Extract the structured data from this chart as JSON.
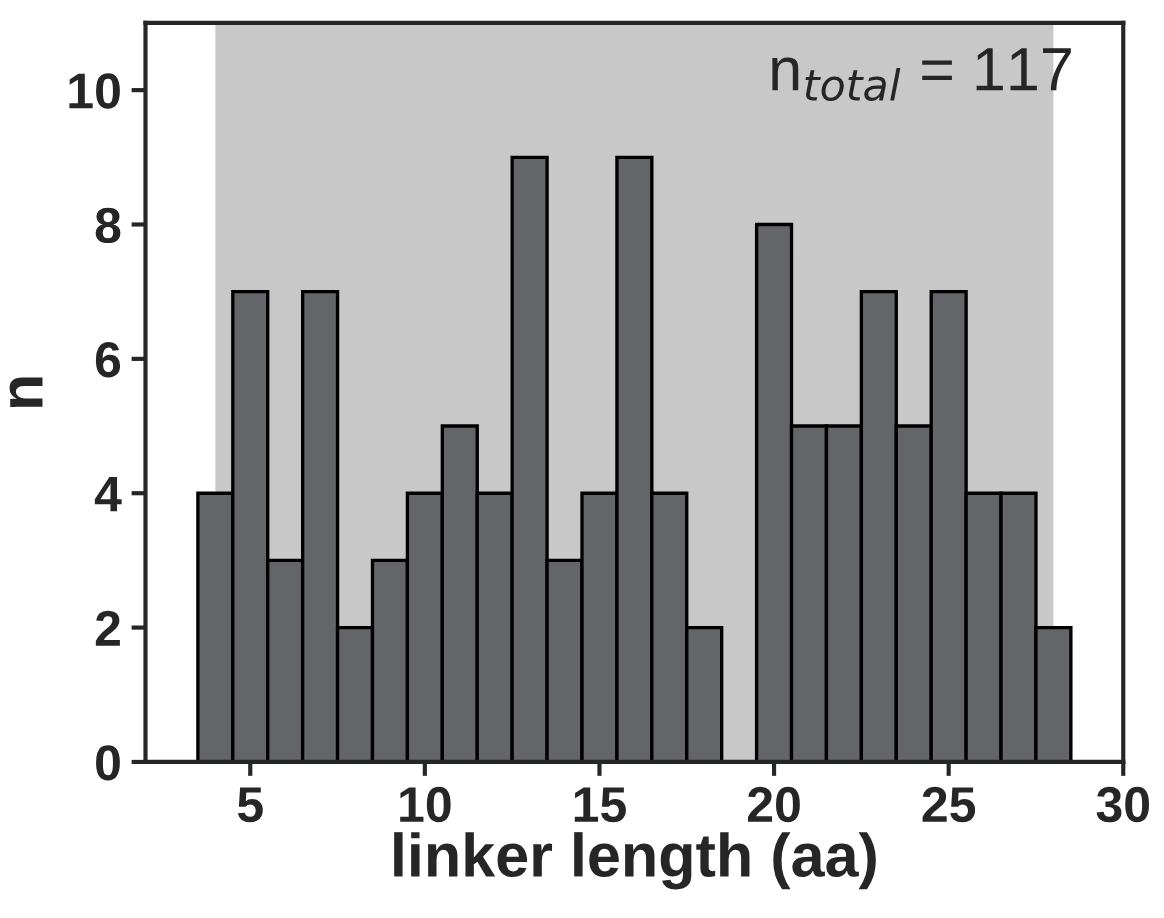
{
  "chart_data": {
    "type": "histogram",
    "xlabel": "linker length (aa)",
    "ylabel": "n",
    "bins": [
      3.5,
      4.5,
      5.5,
      6.5,
      7.5,
      8.5,
      9.5,
      10.5,
      11.5,
      12.5,
      13.5,
      14.5,
      15.5,
      16.5,
      17.5,
      18.5,
      19.5,
      20.5,
      21.5,
      22.5,
      23.5,
      24.5,
      25.5,
      26.5,
      27.5,
      28.5
    ],
    "values": [
      4,
      7,
      3,
      7,
      2,
      3,
      4,
      5,
      4,
      9,
      3,
      4,
      9,
      4,
      2,
      0,
      8,
      5,
      5,
      7,
      5,
      7,
      4,
      4,
      2
    ],
    "color": "#646569",
    "xlim": [
      2,
      30
    ],
    "xticks": [
      5,
      10,
      15,
      20,
      25,
      30
    ],
    "ylim": [
      0,
      11
    ],
    "yticks": [
      0,
      2,
      4,
      6,
      8,
      10
    ],
    "bands": [
      {
        "axis": "x",
        "from": 4,
        "to": 28,
        "color": "#c8c8c8"
      }
    ],
    "annotations": [
      "n$_{total}$ = 117"
    ],
    "grid": false,
    "legend": false
  }
}
